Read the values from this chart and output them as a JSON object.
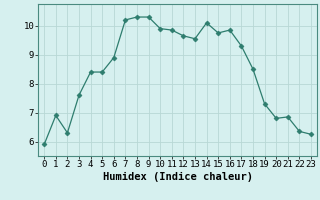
{
  "x": [
    0,
    1,
    2,
    3,
    4,
    5,
    6,
    7,
    8,
    9,
    10,
    11,
    12,
    13,
    14,
    15,
    16,
    17,
    18,
    19,
    20,
    21,
    22,
    23
  ],
  "y": [
    5.9,
    6.9,
    6.3,
    7.6,
    8.4,
    8.4,
    8.9,
    10.2,
    10.3,
    10.3,
    9.9,
    9.85,
    9.65,
    9.55,
    10.1,
    9.75,
    9.85,
    9.3,
    8.5,
    7.3,
    6.8,
    6.85,
    6.35,
    6.25
  ],
  "line_color": "#2e7d6e",
  "marker": "D",
  "marker_size": 2.5,
  "bg_color": "#d6f0ef",
  "grid_color": "#b8d8d5",
  "xlabel": "Humidex (Indice chaleur)",
  "ylim": [
    5.5,
    10.75
  ],
  "xlim": [
    -0.5,
    23.5
  ],
  "yticks": [
    6,
    7,
    8,
    9,
    10
  ],
  "xticks": [
    0,
    1,
    2,
    3,
    4,
    5,
    6,
    7,
    8,
    9,
    10,
    11,
    12,
    13,
    14,
    15,
    16,
    17,
    18,
    19,
    20,
    21,
    22,
    23
  ],
  "label_fontsize": 7.5,
  "tick_fontsize": 6.5
}
